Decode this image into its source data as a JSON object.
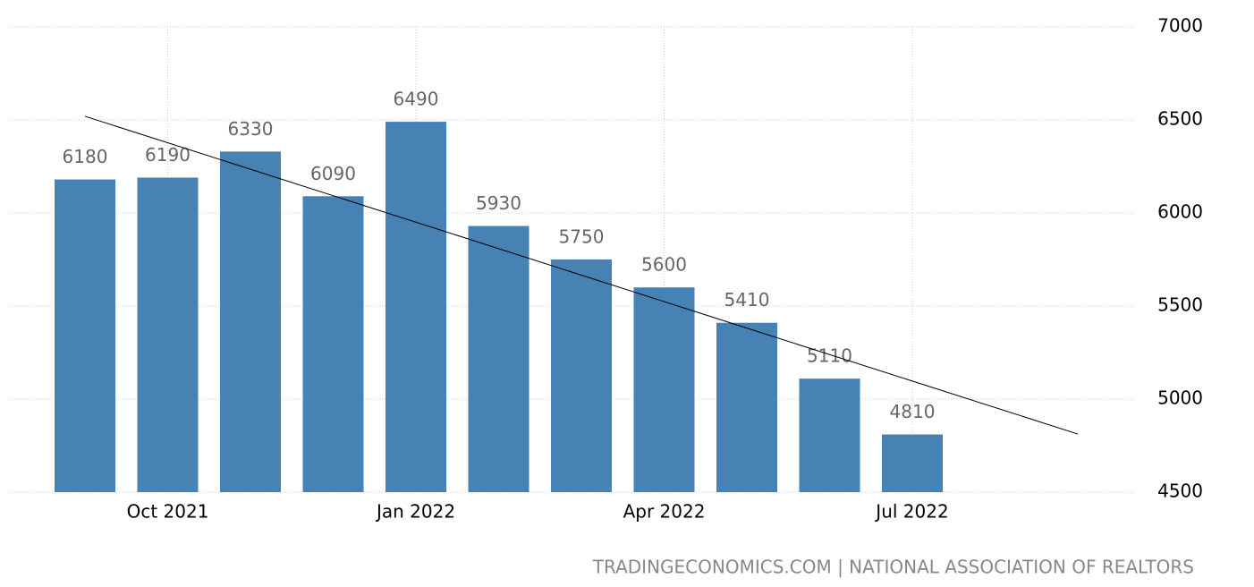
{
  "chart_data": {
    "type": "bar",
    "categories": [
      null,
      "Oct 2021",
      null,
      null,
      "Jan 2022",
      null,
      null,
      "Apr 2022",
      null,
      null,
      "Jul 2022"
    ],
    "values": [
      6180,
      6190,
      6330,
      6090,
      6490,
      5930,
      5750,
      5600,
      5410,
      5110,
      4810
    ],
    "color": "#4682b4",
    "ylim": [
      4500,
      7000
    ],
    "yticks": [
      4500,
      5000,
      5500,
      6000,
      6500,
      7000
    ],
    "grid": true,
    "trendline": true,
    "value_labels_shown": true,
    "source": "TRADINGECONOMICS.COM | NATIONAL ASSOCIATION OF REALTORS"
  }
}
